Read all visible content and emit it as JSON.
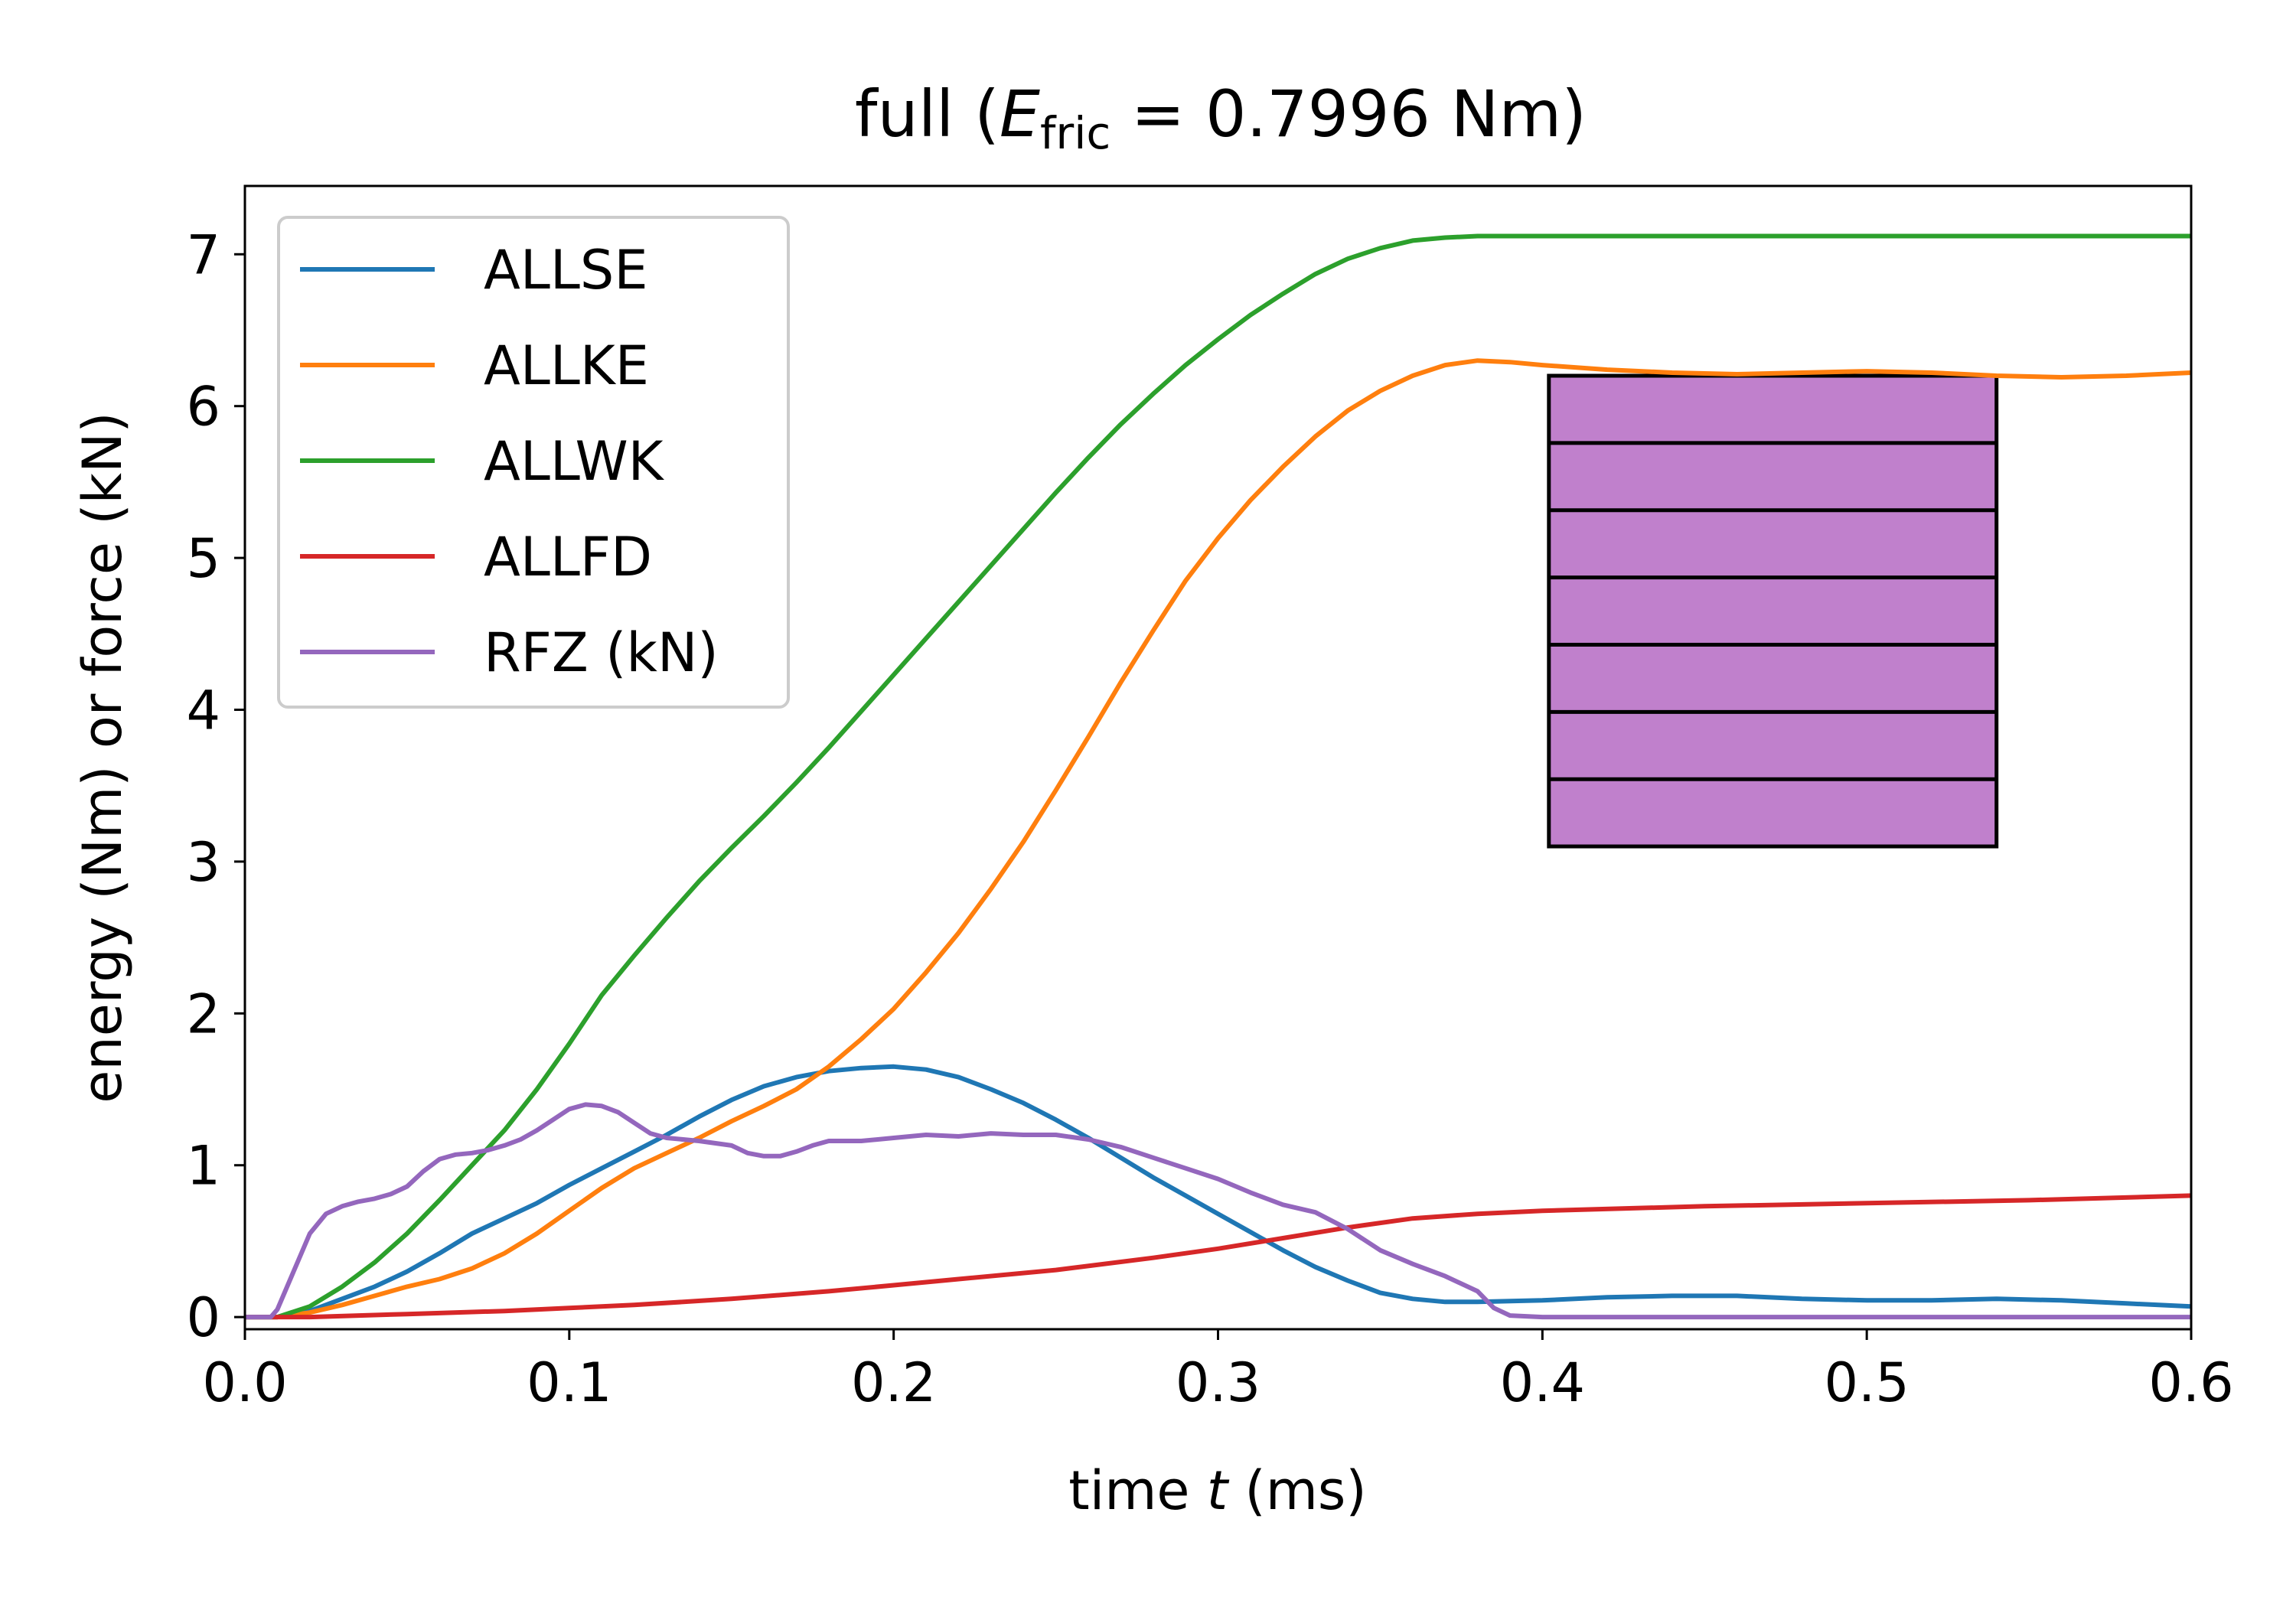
{
  "chart_data": {
    "type": "line",
    "title": {
      "prefix": "full (",
      "symbol": "E",
      "subscript": "fric",
      "suffix": " = 0.7996 Nm)"
    },
    "xlabel": {
      "prefix": "time ",
      "symbol": "t",
      "suffix": " (ms)"
    },
    "ylabel": "energy (Nm) or force (kN)",
    "xlim": [
      0,
      0.6
    ],
    "ylim": [
      -0.08,
      7.45
    ],
    "xticks": [
      0.0,
      0.1,
      0.2,
      0.3,
      0.4,
      0.5,
      0.6
    ],
    "xtick_labels": [
      "0.0",
      "0.1",
      "0.2",
      "0.3",
      "0.4",
      "0.5",
      "0.6"
    ],
    "yticks": [
      0,
      1,
      2,
      3,
      4,
      5,
      6,
      7
    ],
    "ytick_labels": [
      "0",
      "1",
      "2",
      "3",
      "4",
      "5",
      "6",
      "7"
    ],
    "grid": false,
    "legend_position": "upper-left",
    "series": [
      {
        "name": "ALLSE",
        "color": "#1f77b4",
        "points": [
          [
            0,
            0
          ],
          [
            0.01,
            0
          ],
          [
            0.02,
            0.04
          ],
          [
            0.03,
            0.12
          ],
          [
            0.04,
            0.2
          ],
          [
            0.05,
            0.3
          ],
          [
            0.06,
            0.42
          ],
          [
            0.07,
            0.55
          ],
          [
            0.08,
            0.65
          ],
          [
            0.09,
            0.75
          ],
          [
            0.1,
            0.87
          ],
          [
            0.11,
            0.98
          ],
          [
            0.12,
            1.09
          ],
          [
            0.13,
            1.2
          ],
          [
            0.14,
            1.32
          ],
          [
            0.15,
            1.43
          ],
          [
            0.16,
            1.52
          ],
          [
            0.17,
            1.58
          ],
          [
            0.18,
            1.62
          ],
          [
            0.19,
            1.64
          ],
          [
            0.2,
            1.65
          ],
          [
            0.21,
            1.63
          ],
          [
            0.22,
            1.58
          ],
          [
            0.23,
            1.5
          ],
          [
            0.24,
            1.41
          ],
          [
            0.25,
            1.3
          ],
          [
            0.26,
            1.18
          ],
          [
            0.27,
            1.05
          ],
          [
            0.28,
            0.92
          ],
          [
            0.29,
            0.8
          ],
          [
            0.3,
            0.68
          ],
          [
            0.31,
            0.56
          ],
          [
            0.32,
            0.44
          ],
          [
            0.33,
            0.33
          ],
          [
            0.34,
            0.24
          ],
          [
            0.35,
            0.16
          ],
          [
            0.36,
            0.12
          ],
          [
            0.37,
            0.1
          ],
          [
            0.38,
            0.1
          ],
          [
            0.4,
            0.11
          ],
          [
            0.42,
            0.13
          ],
          [
            0.44,
            0.14
          ],
          [
            0.46,
            0.14
          ],
          [
            0.48,
            0.12
          ],
          [
            0.5,
            0.11
          ],
          [
            0.52,
            0.11
          ],
          [
            0.54,
            0.12
          ],
          [
            0.56,
            0.11
          ],
          [
            0.58,
            0.09
          ],
          [
            0.6,
            0.07
          ]
        ]
      },
      {
        "name": "ALLKE",
        "color": "#ff7f0e",
        "points": [
          [
            0,
            0
          ],
          [
            0.01,
            0
          ],
          [
            0.02,
            0.03
          ],
          [
            0.03,
            0.08
          ],
          [
            0.04,
            0.14
          ],
          [
            0.05,
            0.2
          ],
          [
            0.06,
            0.25
          ],
          [
            0.07,
            0.32
          ],
          [
            0.08,
            0.42
          ],
          [
            0.09,
            0.55
          ],
          [
            0.1,
            0.7
          ],
          [
            0.11,
            0.85
          ],
          [
            0.12,
            0.98
          ],
          [
            0.13,
            1.08
          ],
          [
            0.14,
            1.18
          ],
          [
            0.15,
            1.29
          ],
          [
            0.16,
            1.39
          ],
          [
            0.17,
            1.5
          ],
          [
            0.18,
            1.65
          ],
          [
            0.19,
            1.83
          ],
          [
            0.2,
            2.03
          ],
          [
            0.21,
            2.27
          ],
          [
            0.22,
            2.53
          ],
          [
            0.23,
            2.82
          ],
          [
            0.24,
            3.13
          ],
          [
            0.25,
            3.47
          ],
          [
            0.26,
            3.82
          ],
          [
            0.27,
            4.18
          ],
          [
            0.28,
            4.52
          ],
          [
            0.29,
            4.85
          ],
          [
            0.3,
            5.13
          ],
          [
            0.31,
            5.38
          ],
          [
            0.32,
            5.6
          ],
          [
            0.33,
            5.8
          ],
          [
            0.34,
            5.97
          ],
          [
            0.35,
            6.1
          ],
          [
            0.36,
            6.2
          ],
          [
            0.37,
            6.27
          ],
          [
            0.38,
            6.3
          ],
          [
            0.39,
            6.29
          ],
          [
            0.4,
            6.27
          ],
          [
            0.42,
            6.24
          ],
          [
            0.44,
            6.22
          ],
          [
            0.46,
            6.21
          ],
          [
            0.48,
            6.22
          ],
          [
            0.5,
            6.23
          ],
          [
            0.52,
            6.22
          ],
          [
            0.54,
            6.2
          ],
          [
            0.56,
            6.19
          ],
          [
            0.58,
            6.2
          ],
          [
            0.6,
            6.22
          ]
        ]
      },
      {
        "name": "ALLWK",
        "color": "#2ca02c",
        "points": [
          [
            0,
            0
          ],
          [
            0.01,
            0
          ],
          [
            0.02,
            0.07
          ],
          [
            0.03,
            0.2
          ],
          [
            0.04,
            0.36
          ],
          [
            0.05,
            0.55
          ],
          [
            0.06,
            0.77
          ],
          [
            0.07,
            1.0
          ],
          [
            0.08,
            1.23
          ],
          [
            0.09,
            1.5
          ],
          [
            0.1,
            1.8
          ],
          [
            0.11,
            2.12
          ],
          [
            0.12,
            2.38
          ],
          [
            0.13,
            2.63
          ],
          [
            0.14,
            2.87
          ],
          [
            0.15,
            3.09
          ],
          [
            0.16,
            3.3
          ],
          [
            0.17,
            3.52
          ],
          [
            0.18,
            3.75
          ],
          [
            0.19,
            3.99
          ],
          [
            0.2,
            4.23
          ],
          [
            0.21,
            4.47
          ],
          [
            0.22,
            4.71
          ],
          [
            0.23,
            4.95
          ],
          [
            0.24,
            5.19
          ],
          [
            0.25,
            5.43
          ],
          [
            0.26,
            5.66
          ],
          [
            0.27,
            5.88
          ],
          [
            0.28,
            6.08
          ],
          [
            0.29,
            6.27
          ],
          [
            0.3,
            6.44
          ],
          [
            0.31,
            6.6
          ],
          [
            0.32,
            6.74
          ],
          [
            0.33,
            6.87
          ],
          [
            0.34,
            6.97
          ],
          [
            0.35,
            7.04
          ],
          [
            0.36,
            7.09
          ],
          [
            0.37,
            7.11
          ],
          [
            0.38,
            7.12
          ],
          [
            0.4,
            7.12
          ],
          [
            0.45,
            7.12
          ],
          [
            0.5,
            7.12
          ],
          [
            0.55,
            7.12
          ],
          [
            0.6,
            7.12
          ]
        ]
      },
      {
        "name": "ALLFD",
        "color": "#d62728",
        "points": [
          [
            0,
            0
          ],
          [
            0.02,
            0
          ],
          [
            0.05,
            0.02
          ],
          [
            0.08,
            0.04
          ],
          [
            0.1,
            0.06
          ],
          [
            0.12,
            0.08
          ],
          [
            0.15,
            0.12
          ],
          [
            0.18,
            0.17
          ],
          [
            0.2,
            0.21
          ],
          [
            0.22,
            0.25
          ],
          [
            0.25,
            0.31
          ],
          [
            0.28,
            0.39
          ],
          [
            0.3,
            0.45
          ],
          [
            0.32,
            0.52
          ],
          [
            0.34,
            0.59
          ],
          [
            0.36,
            0.65
          ],
          [
            0.38,
            0.68
          ],
          [
            0.4,
            0.7
          ],
          [
            0.45,
            0.73
          ],
          [
            0.5,
            0.75
          ],
          [
            0.55,
            0.77
          ],
          [
            0.6,
            0.8
          ]
        ]
      },
      {
        "name": "RFZ (kN)",
        "color": "#9467bd",
        "points": [
          [
            0,
            0
          ],
          [
            0.008,
            0
          ],
          [
            0.01,
            0.05
          ],
          [
            0.015,
            0.3
          ],
          [
            0.02,
            0.55
          ],
          [
            0.025,
            0.68
          ],
          [
            0.03,
            0.73
          ],
          [
            0.035,
            0.76
          ],
          [
            0.04,
            0.78
          ],
          [
            0.045,
            0.81
          ],
          [
            0.05,
            0.86
          ],
          [
            0.055,
            0.96
          ],
          [
            0.06,
            1.04
          ],
          [
            0.065,
            1.07
          ],
          [
            0.07,
            1.08
          ],
          [
            0.075,
            1.1
          ],
          [
            0.08,
            1.13
          ],
          [
            0.085,
            1.17
          ],
          [
            0.09,
            1.23
          ],
          [
            0.095,
            1.3
          ],
          [
            0.1,
            1.37
          ],
          [
            0.105,
            1.4
          ],
          [
            0.11,
            1.39
          ],
          [
            0.115,
            1.35
          ],
          [
            0.12,
            1.28
          ],
          [
            0.125,
            1.21
          ],
          [
            0.13,
            1.18
          ],
          [
            0.14,
            1.16
          ],
          [
            0.15,
            1.13
          ],
          [
            0.155,
            1.08
          ],
          [
            0.16,
            1.06
          ],
          [
            0.165,
            1.06
          ],
          [
            0.17,
            1.09
          ],
          [
            0.175,
            1.13
          ],
          [
            0.18,
            1.16
          ],
          [
            0.19,
            1.16
          ],
          [
            0.2,
            1.18
          ],
          [
            0.21,
            1.2
          ],
          [
            0.22,
            1.19
          ],
          [
            0.23,
            1.21
          ],
          [
            0.24,
            1.2
          ],
          [
            0.25,
            1.2
          ],
          [
            0.26,
            1.17
          ],
          [
            0.27,
            1.12
          ],
          [
            0.28,
            1.05
          ],
          [
            0.29,
            0.98
          ],
          [
            0.3,
            0.91
          ],
          [
            0.31,
            0.82
          ],
          [
            0.32,
            0.74
          ],
          [
            0.33,
            0.69
          ],
          [
            0.34,
            0.58
          ],
          [
            0.35,
            0.44
          ],
          [
            0.36,
            0.35
          ],
          [
            0.37,
            0.27
          ],
          [
            0.38,
            0.17
          ],
          [
            0.385,
            0.06
          ],
          [
            0.39,
            0.01
          ],
          [
            0.4,
            0
          ],
          [
            0.5,
            0
          ],
          [
            0.6,
            0
          ]
        ]
      }
    ],
    "inset": {
      "description": "purple rectangle with horizontal stripes",
      "fill": "#c080cc",
      "stroke": "#000000",
      "x_range": [
        0.402,
        0.54
      ],
      "y_range": [
        3.1,
        6.2
      ],
      "divisions": 7
    }
  }
}
